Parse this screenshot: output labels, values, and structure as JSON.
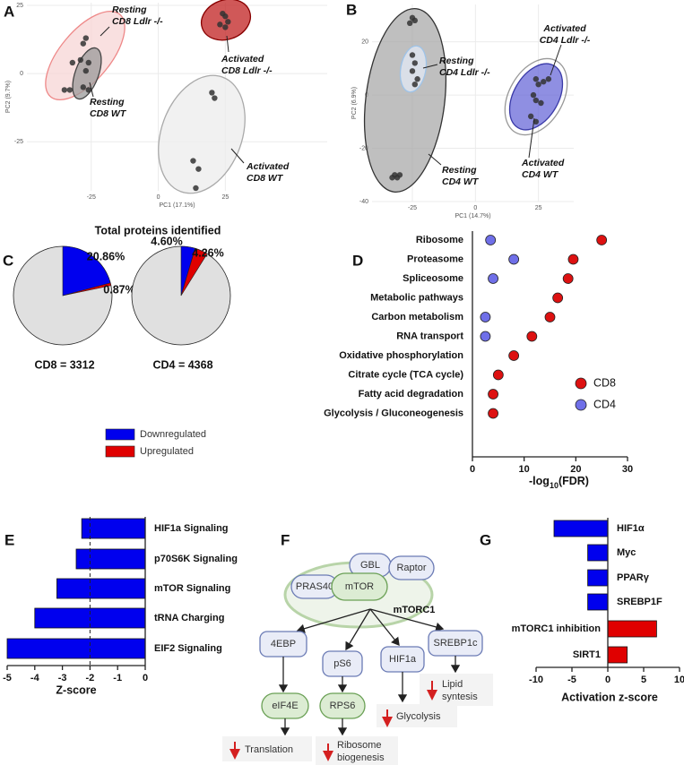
{
  "chart_data": [
    {
      "type": "scatter",
      "panel": "A",
      "x_label": "PC1 (17.1%)",
      "y_label": "PC2 (9.7%)",
      "x": [
        -27,
        -28,
        -29,
        -32,
        -33,
        -35,
        -26,
        -27,
        -28,
        -26,
        24,
        25,
        26,
        23,
        25,
        20,
        21,
        13,
        15,
        14
      ],
      "y": [
        13,
        11,
        5,
        4,
        -6,
        -6,
        4,
        1,
        -5,
        -6,
        22,
        21,
        19,
        18,
        17,
        -7,
        -9,
        -32,
        -35,
        -42
      ],
      "color": "#333333",
      "xlim": [
        -49,
        63
      ],
      "ylim": [
        -43,
        26
      ],
      "xticks": [
        -25,
        0,
        25
      ],
      "yticks": [
        -25,
        0,
        25
      ],
      "grid": true,
      "annotations": [
        [
          "Resting",
          "CD8 Ldlr -/-"
        ],
        [
          "Activated",
          "CD8 Ldlr -/-"
        ],
        [
          "Resting",
          "CD8 WT"
        ],
        [
          "Activated",
          "CD8 WT"
        ]
      ]
    },
    {
      "type": "scatter",
      "panel": "B",
      "x_label": "PC1 (14.7%)",
      "y_label": "PC2 (6.9%)",
      "x": [
        -32,
        -31,
        -30,
        -33,
        -25,
        -24,
        -26,
        -25,
        -24,
        -25,
        -23,
        -24,
        24,
        25,
        27,
        29,
        23,
        24,
        22,
        24,
        26
      ],
      "y": [
        -30,
        -31,
        -30,
        -31,
        29,
        28,
        27,
        15,
        12,
        9,
        6,
        4,
        6,
        4,
        5,
        6,
        0,
        -2,
        -8,
        -10,
        -3
      ],
      "color": "#333333",
      "xlim": [
        -41,
        39
      ],
      "ylim": [
        -40,
        34
      ],
      "xticks": [
        -25,
        0,
        25
      ],
      "yticks": [
        -40,
        -20,
        0,
        20
      ],
      "grid": true,
      "annotations": [
        [
          "Resting",
          "CD4 Ldlr -/-"
        ],
        [
          "Activated",
          "CD4 Ldlr -/-"
        ],
        [
          "Resting",
          "CD4 WT"
        ],
        [
          "Activated",
          "CD4 WT"
        ]
      ]
    },
    {
      "type": "pie",
      "panel": "C",
      "title": "Total proteins identified",
      "categories": [
        "Downregulated",
        "Upregulated"
      ],
      "colors": [
        "#0000ee",
        "#e00000"
      ],
      "pies": [
        {
          "label": "CD8 = 3312",
          "values": [
            20.86,
            0.87
          ],
          "value_labels": [
            "20.86%",
            "0.87%"
          ]
        },
        {
          "label": "CD4 = 4368",
          "values": [
            4.6,
            4.26
          ],
          "value_labels": [
            "4.60%",
            "4.26%"
          ]
        }
      ]
    },
    {
      "type": "dot",
      "panel": "D",
      "x_label": [
        "-log",
        "10",
        "(FDR)"
      ],
      "categories": [
        "Ribosome",
        "Proteasome",
        "Spliceosome",
        "Metabolic pathways",
        "Carbon metabolism",
        "RNA transport",
        "Oxidative phosphorylation",
        "Citrate cycle (TCA cycle)",
        "Fatty acid degradation",
        "Glycolysis / Gluconeogenesis"
      ],
      "series": [
        {
          "name": "CD8",
          "color": "#dd1111",
          "values": [
            25,
            19.5,
            18.5,
            16.5,
            15,
            11.5,
            8,
            5,
            4,
            4
          ]
        },
        {
          "name": "CD4",
          "color": "#6f6fe8",
          "values": [
            3.5,
            8,
            4,
            null,
            2.5,
            2.5,
            null,
            null,
            null,
            null
          ]
        }
      ],
      "xlim": [
        0,
        30
      ],
      "xticks": [
        0,
        10,
        20,
        30
      ],
      "legend": "lower right"
    },
    {
      "type": "hbar",
      "panel": "E",
      "x_label": "Z-score",
      "categories": [
        "HIF1a Signaling",
        "p70S6K Signaling",
        "mTOR Signaling",
        "tRNA Charging",
        "EIF2 Signaling"
      ],
      "values": [
        -2.3,
        -2.5,
        -3.2,
        -4,
        -5
      ],
      "color": "#0000ee",
      "xlim": [
        -5,
        0
      ],
      "xticks": [
        -5,
        -4,
        -3,
        -2,
        -1,
        0
      ],
      "reference_line": -2
    },
    {
      "type": "hbar",
      "panel": "G",
      "x_label": "Activation z-score",
      "categories": [
        "HIF1α",
        "Myc",
        "PPARγ",
        "SREBP1F",
        "mTORC1 inhibition",
        "SIRT1"
      ],
      "values": [
        -7.5,
        -2.8,
        -2.8,
        -2.8,
        6.8,
        2.7
      ],
      "colors": [
        "#0000ee",
        "#0000ee",
        "#0000ee",
        "#0000ee",
        "#e00000",
        "#e00000"
      ],
      "xlim": [
        -10,
        10
      ],
      "xticks": [
        -10,
        -5,
        0,
        5,
        10
      ]
    }
  ],
  "diagram": {
    "panel": "F",
    "complex": [
      "GBL",
      "Raptor",
      "PRAS40",
      "mTOR"
    ],
    "complex_name": "mTORC1",
    "targets": [
      "4EBP",
      "pS6",
      "HIF1a",
      "SREBP1c"
    ],
    "effectors": [
      "eIF4E",
      "RPS6"
    ],
    "outcomes": [
      [
        "Translation"
      ],
      [
        "Ribosome",
        "biogenesis"
      ],
      [
        "Glycolysis"
      ],
      [
        "Lipid",
        "syntesis"
      ]
    ]
  }
}
